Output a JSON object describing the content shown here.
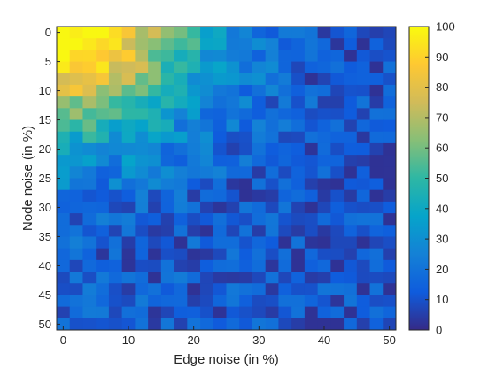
{
  "chart_data": {
    "type": "heatmap",
    "title": "",
    "xlabel": "Edge noise (in %)",
    "ylabel": "Node noise (in %)",
    "x_range": [
      0,
      51
    ],
    "y_range": [
      0,
      51
    ],
    "y_axis_direction": "top-to-bottom",
    "x_ticks": [
      "0",
      "10",
      "20",
      "30",
      "40",
      "50"
    ],
    "y_ticks": [
      "0",
      "5",
      "10",
      "15",
      "20",
      "25",
      "30",
      "35",
      "40",
      "45",
      "50"
    ],
    "colorbar": {
      "range": [
        0,
        100
      ],
      "ticks": [
        "0",
        "10",
        "20",
        "30",
        "40",
        "50",
        "60",
        "70",
        "80",
        "90",
        "100"
      ],
      "colormap": "parula"
    },
    "colormap_stops": [
      "#352a87",
      "#0f5cdd",
      "#1481d6",
      "#06a4ca",
      "#2eb7a4",
      "#87bf77",
      "#d1bb59",
      "#fec832",
      "#f9fb0e"
    ],
    "value_model": "approximate surface: high (~85-100) near zero edge and zero node noise, decreasing to ~5-15 at high noise, with cell-to-cell variation"
  }
}
